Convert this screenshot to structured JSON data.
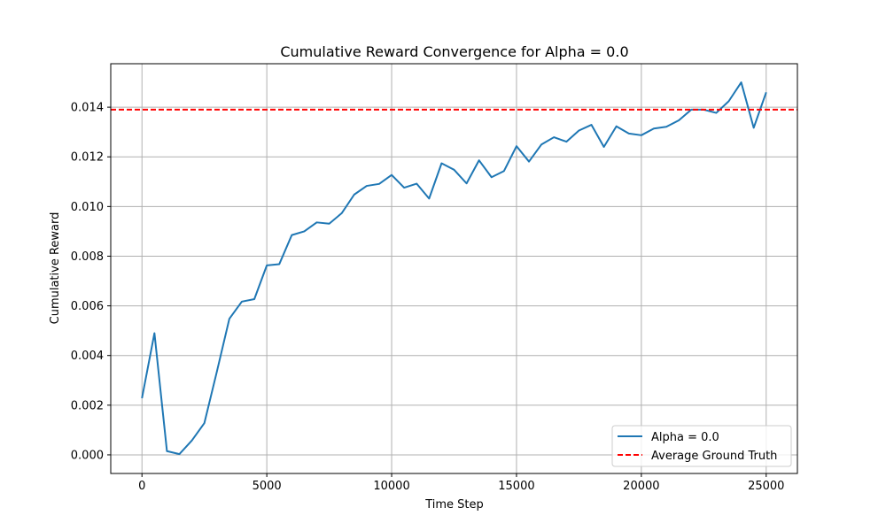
{
  "chart_data": {
    "type": "line",
    "title": "Cumulative Reward Convergence for Alpha = 0.0",
    "xlabel": "Time Step",
    "ylabel": "Cumulative Reward",
    "xlim": [
      -1250,
      26250
    ],
    "ylim": [
      -0.00075,
      0.01575
    ],
    "xticks": [
      0,
      5000,
      10000,
      15000,
      20000,
      25000
    ],
    "xtick_labels": [
      "0",
      "5000",
      "10000",
      "15000",
      "20000",
      "25000"
    ],
    "yticks": [
      0.0,
      0.002,
      0.004,
      0.006,
      0.008,
      0.01,
      0.012,
      0.014
    ],
    "ytick_labels": [
      "0.000",
      "0.002",
      "0.004",
      "0.006",
      "0.008",
      "0.010",
      "0.012",
      "0.014"
    ],
    "grid": true,
    "legend_position": "lower-right",
    "series": [
      {
        "name": "Alpha = 0.0",
        "color": "#1f77b4",
        "style": "solid",
        "x": [
          0,
          500,
          1000,
          1500,
          2000,
          2500,
          3000,
          3500,
          4000,
          4500,
          5000,
          5500,
          6000,
          6500,
          7000,
          7500,
          8000,
          8500,
          9000,
          9500,
          10000,
          10500,
          11000,
          11500,
          12000,
          12500,
          13000,
          13500,
          14000,
          14500,
          15000,
          15500,
          16000,
          16500,
          17000,
          17500,
          18000,
          18500,
          19000,
          19500,
          20000,
          20500,
          21000,
          21500,
          22000,
          22500,
          23000,
          23500,
          24000,
          24500,
          25000
        ],
        "y": [
          0.00228,
          0.0049,
          0.00015,
          3e-05,
          0.00058,
          0.00128,
          0.00335,
          0.00548,
          0.00617,
          0.00627,
          0.00763,
          0.00768,
          0.00885,
          0.009,
          0.00936,
          0.00931,
          0.00973,
          0.01048,
          0.01083,
          0.01091,
          0.01127,
          0.01076,
          0.01092,
          0.01032,
          0.01174,
          0.01148,
          0.01093,
          0.01186,
          0.01118,
          0.01143,
          0.01243,
          0.01181,
          0.0125,
          0.01279,
          0.01261,
          0.01306,
          0.01329,
          0.0124,
          0.01323,
          0.01294,
          0.01287,
          0.01314,
          0.01321,
          0.01347,
          0.0139,
          0.0139,
          0.01377,
          0.01424,
          0.015,
          0.01317,
          0.0146
        ]
      }
    ],
    "reference_lines": [
      {
        "name": "Average Ground Truth",
        "color": "#ff0000",
        "style": "dashed",
        "y": 0.0139
      }
    ]
  }
}
